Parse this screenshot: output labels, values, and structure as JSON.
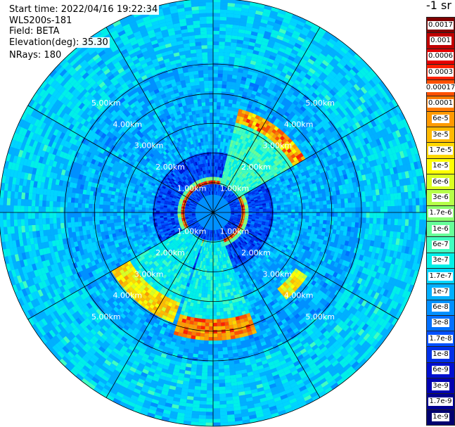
{
  "header": {
    "start_time": "Start time: 2022/04/16 19:22:34",
    "instrument": "WLS200s-181",
    "field": "Field: BETA",
    "elevation": "Elevation(deg): 35.30",
    "nrays": "NRays: 180"
  },
  "chart_data": {
    "type": "heatmap",
    "projection": "polar (PPI scan)",
    "field": "BETA",
    "unit_label": "-1 sr",
    "elevation_deg": 35.3,
    "n_rays": 180,
    "range_ring_labels": [
      "1.00km",
      "2.00km",
      "3.00km",
      "4.00km",
      "5.00km"
    ],
    "range_rings_km": [
      1,
      2,
      3,
      4,
      5
    ],
    "max_range_km": 5.6,
    "radial_lines_deg": [
      0,
      30,
      60,
      90,
      120,
      150,
      180,
      210,
      240,
      270,
      300,
      330
    ],
    "colorbar": {
      "labels": [
        "0.0017",
        "0.001",
        "0.0006",
        "0.0003",
        "0.00017",
        "0.0001",
        "6e-5",
        "3e-5",
        "1.7e-5",
        "1e-5",
        "6e-6",
        "3e-6",
        "1.7e-6",
        "1e-6",
        "6e-7",
        "3e-7",
        "1.7e-7",
        "1e-7",
        "6e-8",
        "3e-8",
        "1.7e-8",
        "1e-8",
        "6e-9",
        "3e-9",
        "1.7e-9",
        "1e-9"
      ],
      "colors": [
        "#800000",
        "#c00000",
        "#e60000",
        "#ff2000",
        "#ff5000",
        "#ff7a00",
        "#ff9a00",
        "#ffba00",
        "#ffd800",
        "#ffff00",
        "#dcff20",
        "#b6ff48",
        "#8cff70",
        "#66ff98",
        "#40ffc0",
        "#00f0e8",
        "#00d4ff",
        "#00b0ff",
        "#0090ff",
        "#0070ff",
        "#0050ff",
        "#0030e8",
        "#0010d0",
        "#0000b0",
        "#000090",
        "#000070"
      ]
    },
    "features": [
      {
        "name": "near-range ring of high backscatter",
        "range_km": [
          0.9,
          1.1
        ],
        "level": "3e-5 to 1e-4"
      },
      {
        "name": "NE sector echo",
        "azimuth_deg": [
          15,
          60
        ],
        "range_km": [
          1.0,
          3.6
        ],
        "edge_level": "6e-5"
      },
      {
        "name": "SW sector echo",
        "azimuth_deg": [
          200,
          240
        ],
        "range_km": [
          1.0,
          4.0
        ],
        "edge_level": "1e-5"
      },
      {
        "name": "S sector echo",
        "azimuth_deg": [
          155,
          200
        ],
        "range_km": [
          1.0,
          4.2
        ],
        "edge_level": "3e-5"
      },
      {
        "name": "SE patch",
        "azimuth_deg": [
          125,
          140
        ],
        "range_km": [
          3.5,
          3.8
        ],
        "level": "1e-5"
      }
    ]
  }
}
